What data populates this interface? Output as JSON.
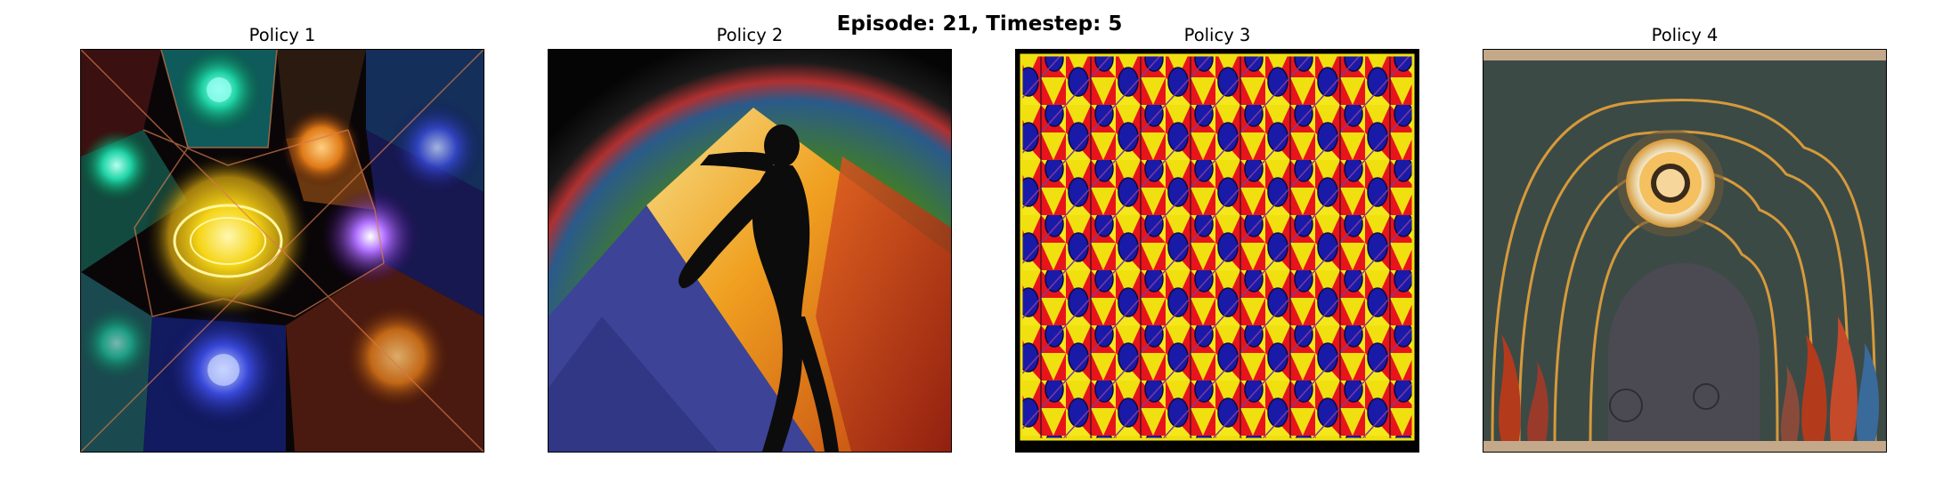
{
  "figure": {
    "suptitle": "Episode: 21, Timestep: 5"
  },
  "panels": [
    {
      "title": "Policy 1",
      "image": "glowing-mandala-kaleidoscope",
      "colors": [
        "#f5d516",
        "#1fd3a6",
        "#3848d8",
        "#8b2ad4",
        "#c8401c"
      ]
    },
    {
      "title": "Policy 2",
      "image": "silhouette-dancer-on-colored-light",
      "colors": [
        "#3f7a2e",
        "#e07a18",
        "#c0301c",
        "#3a3f94",
        "#111111"
      ]
    },
    {
      "title": "Policy 3",
      "image": "red-yellow-blue-pattern",
      "colors": [
        "#1a1aa8",
        "#f0e010",
        "#e8141c",
        "#7a3aa0"
      ]
    },
    {
      "title": "Policy 4",
      "image": "concentric-rings-mural",
      "colors": [
        "#3c4a46",
        "#d69a3a",
        "#f2ead0",
        "#b43a1c",
        "#4b4a52"
      ]
    }
  ]
}
